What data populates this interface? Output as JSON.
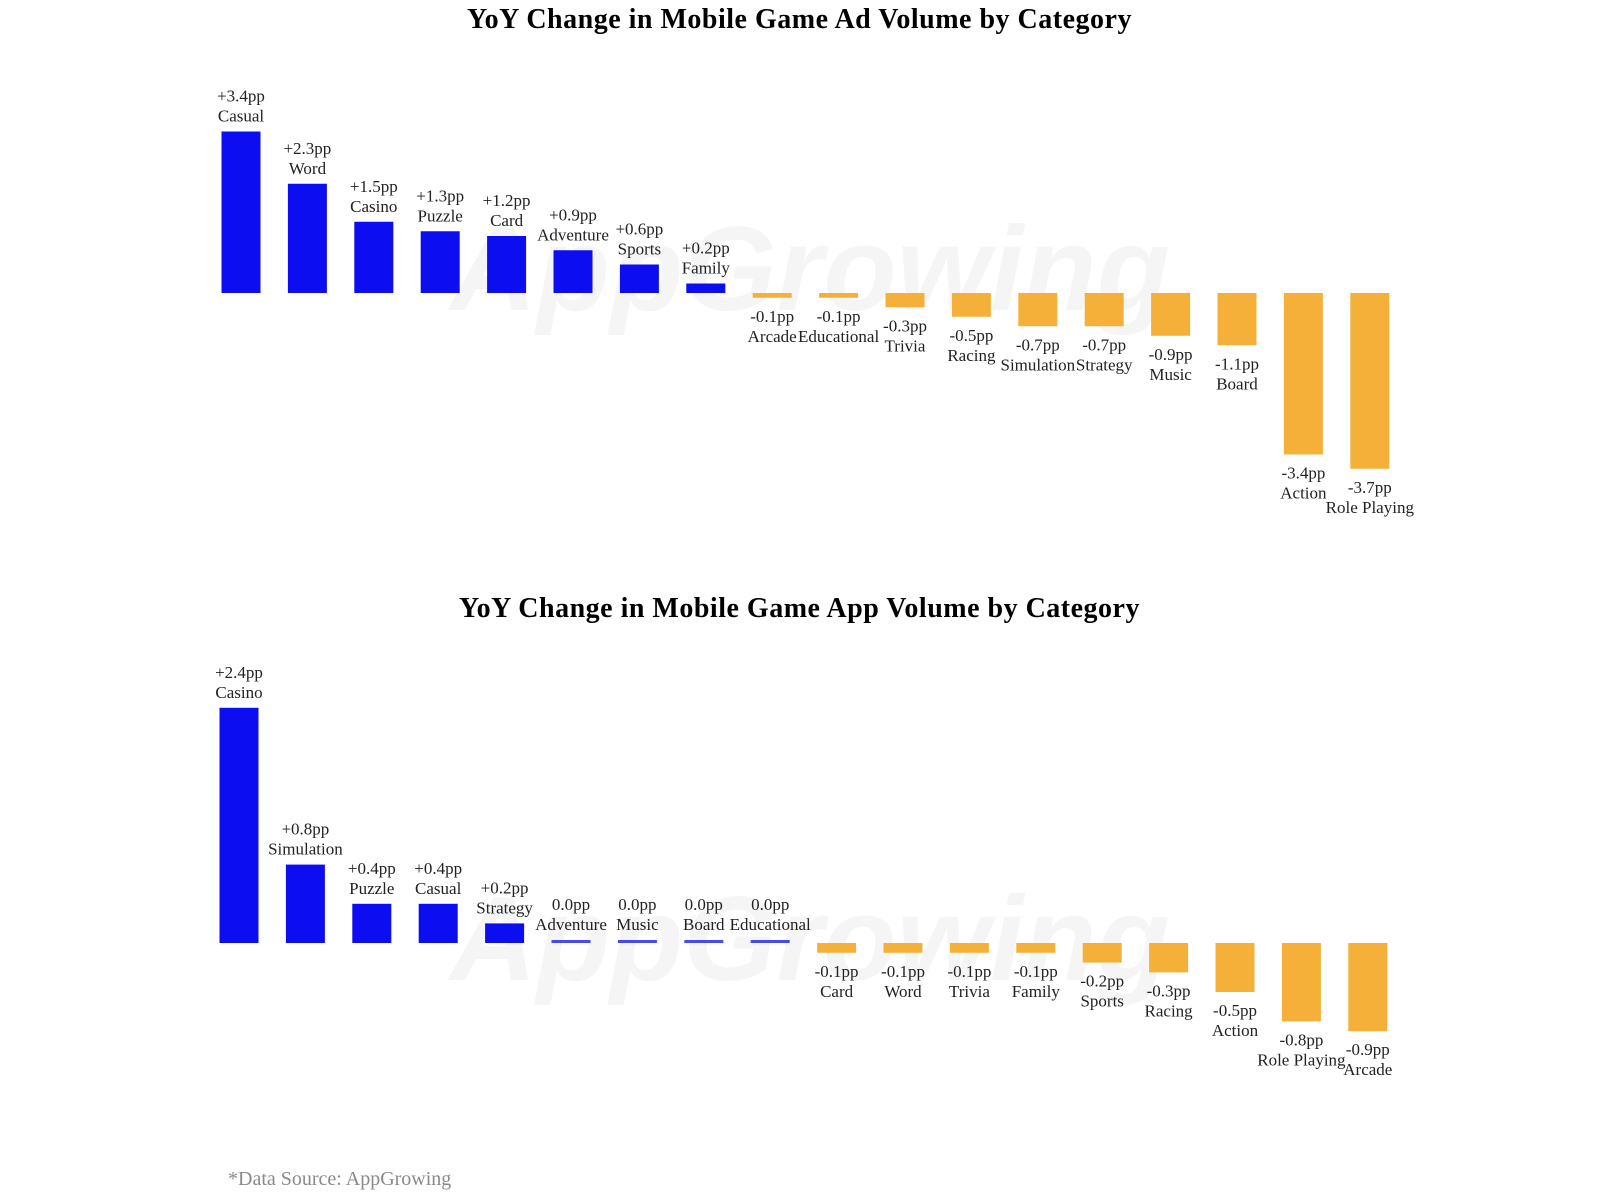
{
  "colors": {
    "positive": "#0d0df2",
    "negative": "#f5b03a"
  },
  "watermark": "AppGrowing",
  "source": "*Data Source: AppGrowing",
  "chart_data": [
    {
      "type": "bar",
      "title": "YoY Change in Mobile Game Ad Volume by Category",
      "unit": "pp",
      "categories": [
        "Casual",
        "Word",
        "Casino",
        "Puzzle",
        "Card",
        "Adventure",
        "Sports",
        "Family",
        "Arcade",
        "Educational",
        "Trivia",
        "Racing",
        "Simulation",
        "Strategy",
        "Music",
        "Board",
        "Action",
        "Role Playing"
      ],
      "values": [
        3.4,
        2.3,
        1.5,
        1.3,
        1.2,
        0.9,
        0.6,
        0.2,
        -0.1,
        -0.1,
        -0.3,
        -0.5,
        -0.7,
        -0.7,
        -0.9,
        -1.1,
        -3.4,
        -3.7
      ],
      "labels": [
        "+3.4pp",
        "+2.3pp",
        "+1.5pp",
        "+1.3pp",
        "+1.2pp",
        "+0.9pp",
        "+0.6pp",
        "+0.2pp",
        "-0.1pp",
        "-0.1pp",
        "-0.3pp",
        "-0.5pp",
        "-0.7pp",
        "-0.7pp",
        "-0.9pp",
        "-1.1pp",
        "-3.4pp",
        "-3.7pp"
      ]
    },
    {
      "type": "bar",
      "title": "YoY Change in Mobile Game App Volume by Category",
      "unit": "pp",
      "categories": [
        "Casino",
        "Simulation",
        "Puzzle",
        "Casual",
        "Strategy",
        "Adventure",
        "Music",
        "Board",
        "Educational",
        "Card",
        "Word",
        "Trivia",
        "Family",
        "Sports",
        "Racing",
        "Action",
        "Role Playing",
        "Arcade"
      ],
      "values": [
        2.4,
        0.8,
        0.4,
        0.4,
        0.2,
        0.0,
        0.0,
        0.0,
        0.0,
        -0.1,
        -0.1,
        -0.1,
        -0.1,
        -0.2,
        -0.3,
        -0.5,
        -0.8,
        -0.9
      ],
      "labels": [
        "+2.4pp",
        "+0.8pp",
        "+0.4pp",
        "+0.4pp",
        "+0.2pp",
        "0.0pp",
        "0.0pp",
        "0.0pp",
        "0.0pp",
        "-0.1pp",
        "-0.1pp",
        "-0.1pp",
        "-0.1pp",
        "-0.2pp",
        "-0.3pp",
        "-0.5pp",
        "-0.8pp",
        "-0.9pp"
      ]
    }
  ]
}
